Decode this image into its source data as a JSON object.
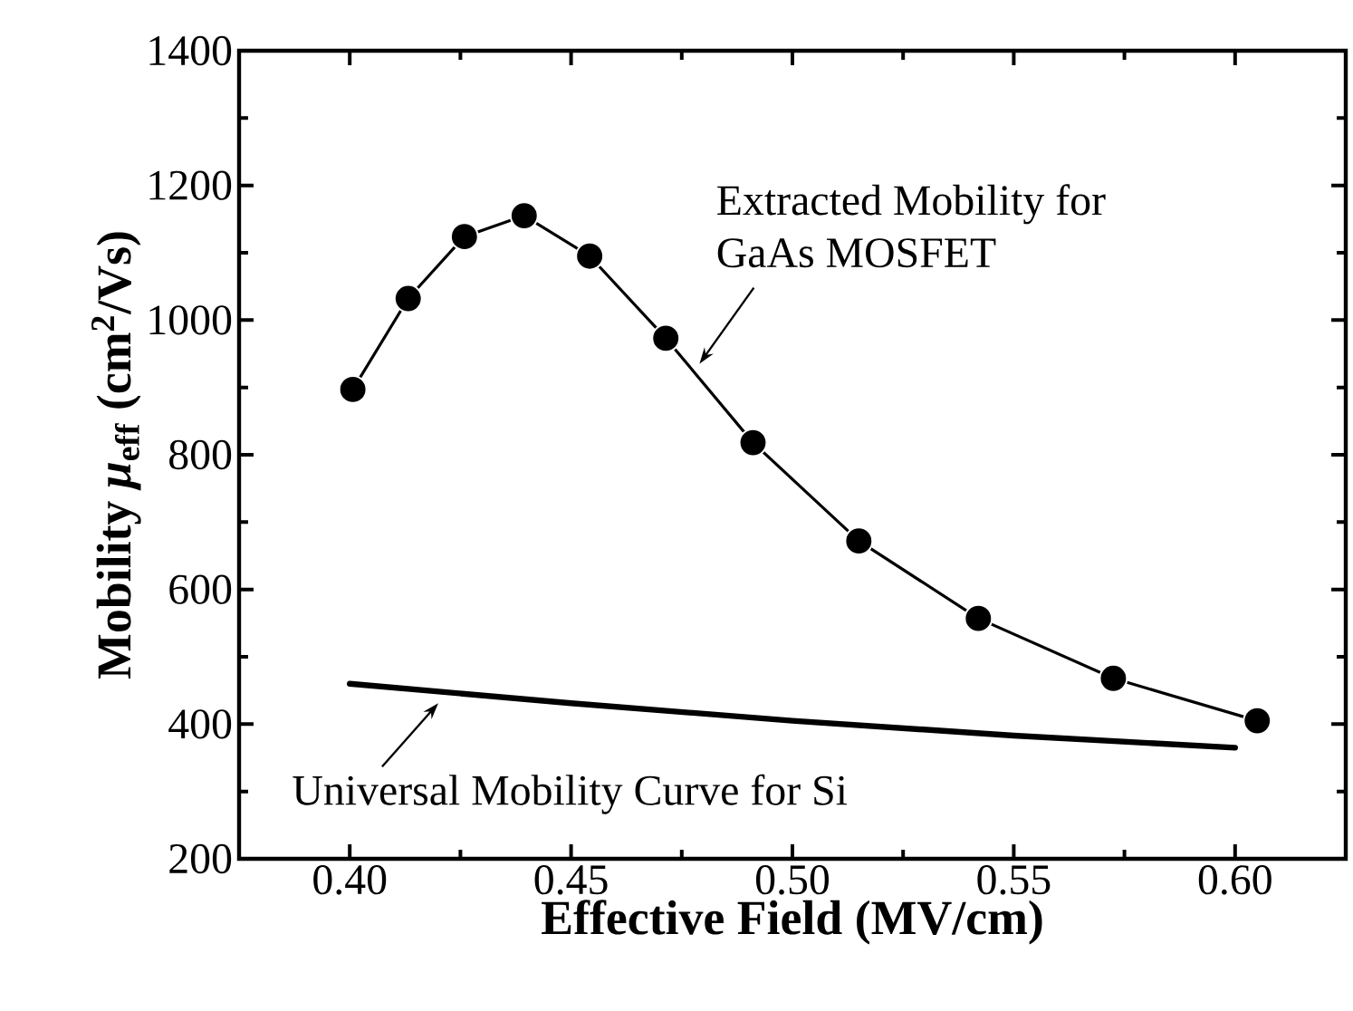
{
  "chart_data": {
    "type": "line",
    "xlabel": "Effective Field (MV/cm)",
    "ylabel": "Mobility *μ*$_{eff}$ (cm$^{2}$/Vs)",
    "xlim": [
      0.375,
      0.625
    ],
    "xticks": [
      {
        "value": 0.4,
        "label": "0.40"
      },
      {
        "value": 0.45,
        "label": "0.45"
      },
      {
        "value": 0.5,
        "label": "0.50"
      },
      {
        "value": 0.55,
        "label": "0.55"
      },
      {
        "value": 0.6,
        "label": "0.60"
      }
    ],
    "ylim": [
      200,
      1400
    ],
    "yticks": [
      200,
      400,
      600,
      800,
      1000,
      1200,
      1400
    ],
    "tick_labels": "xy_left_bottom",
    "series": [
      {
        "color": "#000000",
        "marker": "circle",
        "line_style": "solid",
        "x": [
          0.4007,
          0.4132,
          0.4259,
          0.4394,
          0.4542,
          0.4714,
          0.4911,
          0.515,
          0.542,
          0.5725,
          0.605
        ],
        "values": [
          897,
          1032,
          1124,
          1155,
          1095,
          973,
          818,
          672,
          557,
          468,
          405
        ]
      },
      {
        "color": "#000000",
        "marker": "none",
        "line_style": "solid",
        "x": [
          0.4,
          0.45,
          0.5,
          0.55,
          0.6
        ],
        "values": [
          460,
          431,
          405,
          383,
          365
        ]
      }
    ],
    "annotations": [
      {
        "text": "Extracted Mobility for\nGaAs MOSFET",
        "x": 0.479,
        "y": 935
      },
      {
        "text": "Universal Mobility Curve for Si",
        "x": 0.42,
        "y": 431
      }
    ]
  }
}
